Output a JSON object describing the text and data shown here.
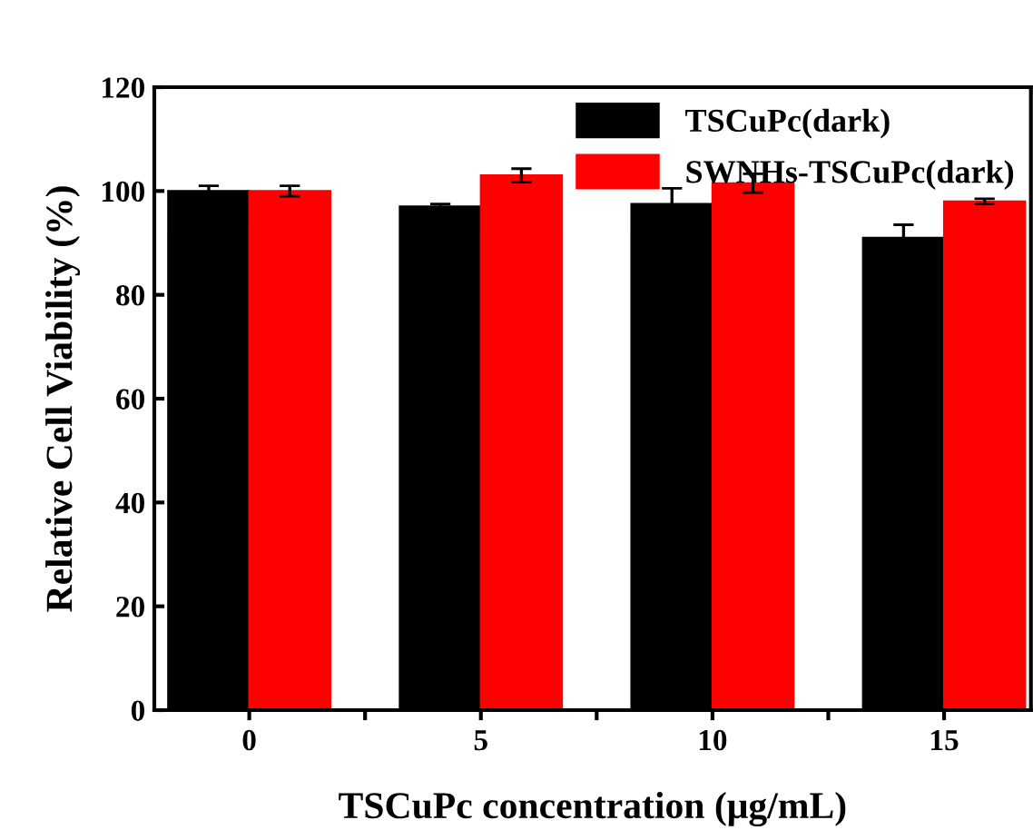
{
  "chart_data": {
    "type": "bar",
    "xlabel": "TSCuPc concentration (μg/mL)",
    "ylabel": "Relative Cell Viability (%)",
    "categories": [
      "0",
      "5",
      "10",
      "15"
    ],
    "series": [
      {
        "name": "TSCuPc(dark)",
        "color": "#000000",
        "values": [
          100,
          97,
          97.5,
          91
        ],
        "errors": [
          1,
          0.5,
          3,
          2.5
        ]
      },
      {
        "name": "SWNHs-TSCuPc(dark)",
        "color": "#ff0000",
        "values": [
          100,
          103,
          101.5,
          98
        ],
        "errors": [
          1,
          1.3,
          1.8,
          0.5
        ]
      }
    ],
    "ylim": [
      0,
      120
    ],
    "yticks": [
      0,
      20,
      40,
      60,
      80,
      100,
      120
    ],
    "legend": "top right",
    "grid": false
  }
}
